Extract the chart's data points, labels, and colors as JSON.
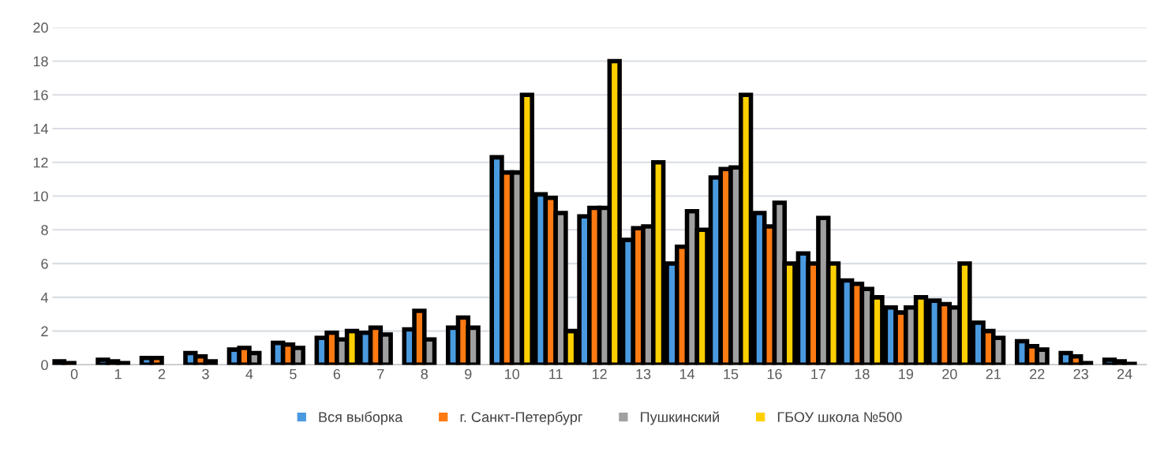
{
  "chart_data": {
    "type": "bar",
    "categories": [
      "0",
      "1",
      "2",
      "3",
      "4",
      "5",
      "6",
      "7",
      "8",
      "9",
      "10",
      "11",
      "12",
      "13",
      "14",
      "15",
      "16",
      "17",
      "18",
      "19",
      "20",
      "21",
      "22",
      "23",
      "24"
    ],
    "series": [
      {
        "name": "Вся выборка",
        "color": "#4a9ae0",
        "values": [
          0.2,
          0.3,
          0.4,
          0.7,
          0.9,
          1.3,
          1.6,
          1.9,
          2.1,
          2.2,
          12.3,
          10.1,
          8.8,
          7.4,
          6.0,
          11.1,
          9.0,
          6.6,
          5.0,
          3.4,
          3.8,
          2.5,
          1.4,
          0.7,
          0.3
        ]
      },
      {
        "name": "г. Санкт-Петербург",
        "color": "#fe7a12",
        "values": [
          0.1,
          0.2,
          0.4,
          0.5,
          1.0,
          1.2,
          1.9,
          2.2,
          3.2,
          2.8,
          11.4,
          9.9,
          9.3,
          8.1,
          7.0,
          11.6,
          8.2,
          6.0,
          4.8,
          3.1,
          3.6,
          2.0,
          1.1,
          0.5,
          0.2
        ]
      },
      {
        "name": "Пушкинский",
        "color": "#a0a0a0",
        "values": [
          0,
          0.1,
          0,
          0.2,
          0.7,
          1.0,
          1.5,
          1.8,
          1.5,
          2.2,
          11.4,
          9.0,
          9.3,
          8.2,
          9.1,
          11.7,
          9.6,
          8.7,
          4.5,
          3.4,
          3.4,
          1.6,
          0.9,
          0.1,
          0.05
        ]
      },
      {
        "name": "ГБОУ школа №500",
        "color": "#ffd000",
        "values": [
          0,
          0,
          0,
          0,
          0,
          0,
          2,
          0,
          0,
          0,
          16,
          2,
          18,
          12,
          8,
          16,
          6,
          6,
          4,
          4,
          6,
          0,
          0,
          0,
          0
        ]
      }
    ],
    "ylim": [
      0,
      20
    ],
    "yticks": [
      0,
      2,
      4,
      6,
      8,
      10,
      12,
      14,
      16,
      18,
      20
    ],
    "grid": "y",
    "legend": "bottom"
  }
}
